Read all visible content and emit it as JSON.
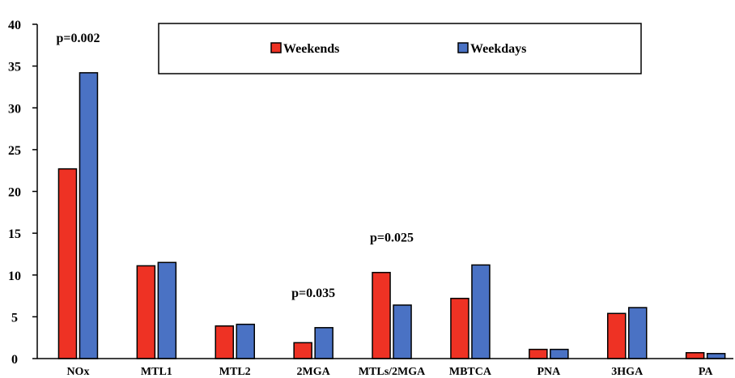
{
  "chart_data": {
    "type": "bar",
    "title": "",
    "xlabel": "",
    "ylabel": "",
    "ylim": [
      0,
      40
    ],
    "yticks": [
      0,
      5,
      10,
      15,
      20,
      25,
      30,
      35,
      40
    ],
    "grid": false,
    "legend_position": "top",
    "categories": [
      "NOx",
      "MTL1",
      "MTL2",
      "2MGA",
      "MTLs/2MGA",
      "MBTCA",
      "PNA",
      "3HGA",
      "PA"
    ],
    "series": [
      {
        "name": "Weekends",
        "color": "#ee3224",
        "values": [
          22.7,
          11.1,
          3.9,
          1.9,
          10.3,
          7.2,
          1.1,
          5.4,
          0.7
        ]
      },
      {
        "name": "Weekdays",
        "color": "#4a72c4",
        "values": [
          34.2,
          11.5,
          4.1,
          3.7,
          6.4,
          11.2,
          1.1,
          6.1,
          0.6
        ]
      }
    ],
    "annotations": [
      {
        "text": "p=0.002",
        "category": "NOx"
      },
      {
        "text": "p=0.035",
        "category": "2MGA"
      },
      {
        "text": "p=0.025",
        "category": "MTLs/2MGA"
      }
    ]
  }
}
